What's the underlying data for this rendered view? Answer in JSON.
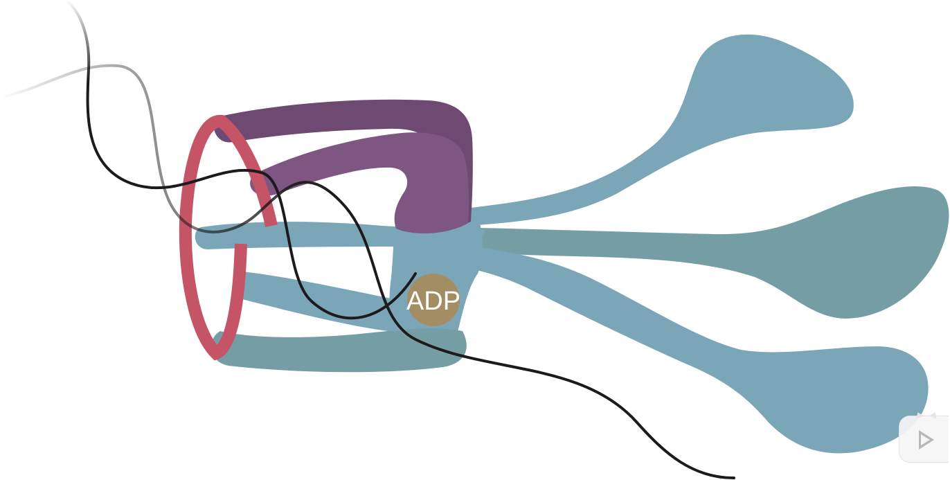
{
  "diagram": {
    "adp_label": "ADP",
    "colors": {
      "background": "#ffffff",
      "domain_blue": "#7aa6b8",
      "domain_teal": "#759ea4",
      "clamp_purple": "#6e4a72",
      "clamp_purple_light": "#7d5682",
      "ring_red": "#c45466",
      "adp_gold": "#a38e63",
      "dna_strand": "#1c1a1c"
    }
  },
  "player": {
    "play_icon": "play-icon"
  }
}
